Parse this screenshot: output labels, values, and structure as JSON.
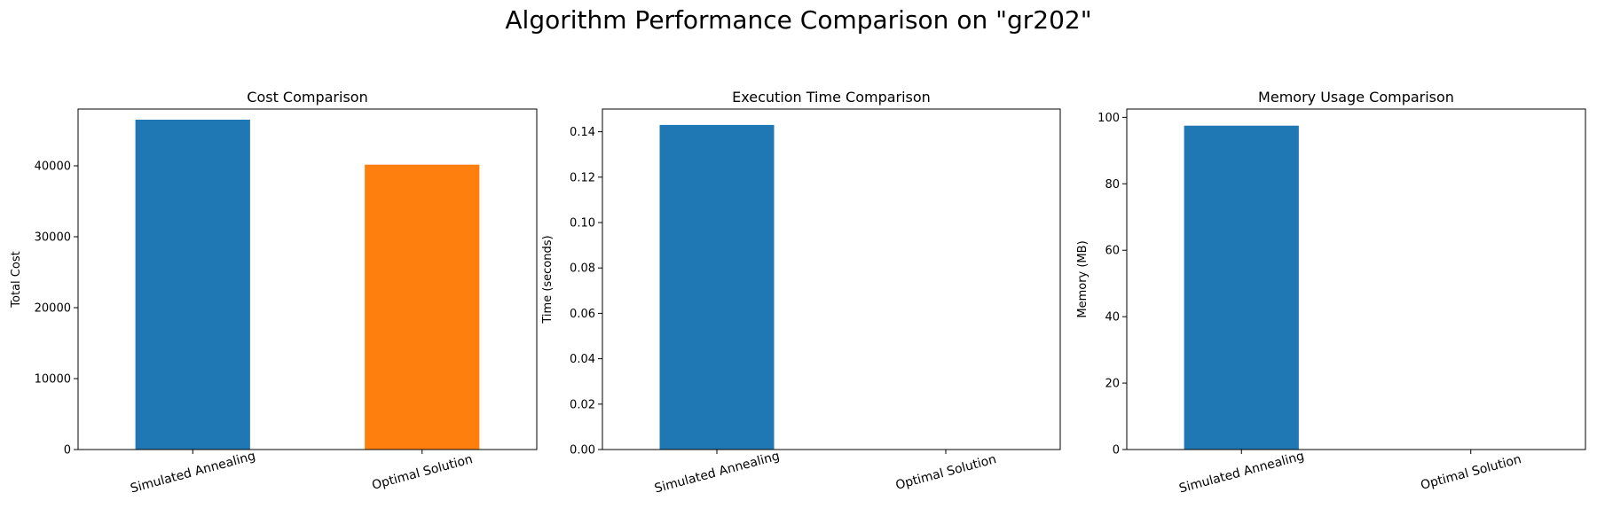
{
  "figure": {
    "suptitle": "Algorithm Performance Comparison on \"gr202\""
  },
  "chart_data": [
    {
      "type": "bar",
      "title": "Cost Comparison",
      "xlabel": "",
      "ylabel": "Total Cost",
      "categories": [
        "Simulated Annealing",
        "Optimal Solution"
      ],
      "values": [
        46500,
        40160
      ],
      "colors": [
        "#1f77b4",
        "#ff7f0e"
      ],
      "ylim": [
        0,
        48000
      ],
      "yticks": [
        0,
        10000,
        20000,
        30000,
        40000
      ],
      "ytick_labels": [
        "0",
        "10000",
        "20000",
        "30000",
        "40000"
      ],
      "grid": false
    },
    {
      "type": "bar",
      "title": "Execution Time Comparison",
      "xlabel": "",
      "ylabel": "Time (seconds)",
      "categories": [
        "Simulated Annealing",
        "Optimal Solution"
      ],
      "values": [
        0.143,
        0
      ],
      "colors": [
        "#1f77b4",
        "#ff7f0e"
      ],
      "ylim": [
        0,
        0.15
      ],
      "yticks": [
        0,
        0.02,
        0.04,
        0.06,
        0.08,
        0.1,
        0.12,
        0.14
      ],
      "ytick_labels": [
        "0.00",
        "0.02",
        "0.04",
        "0.06",
        "0.08",
        "0.10",
        "0.12",
        "0.14"
      ],
      "grid": false
    },
    {
      "type": "bar",
      "title": "Memory Usage Comparison",
      "xlabel": "",
      "ylabel": "Memory (MB)",
      "categories": [
        "Simulated Annealing",
        "Optimal Solution"
      ],
      "values": [
        97.5,
        0
      ],
      "colors": [
        "#1f77b4",
        "#ff7f0e"
      ],
      "ylim": [
        0,
        102.5
      ],
      "yticks": [
        0,
        20,
        40,
        60,
        80,
        100
      ],
      "ytick_labels": [
        "0",
        "20",
        "40",
        "60",
        "80",
        "100"
      ],
      "grid": false
    }
  ]
}
